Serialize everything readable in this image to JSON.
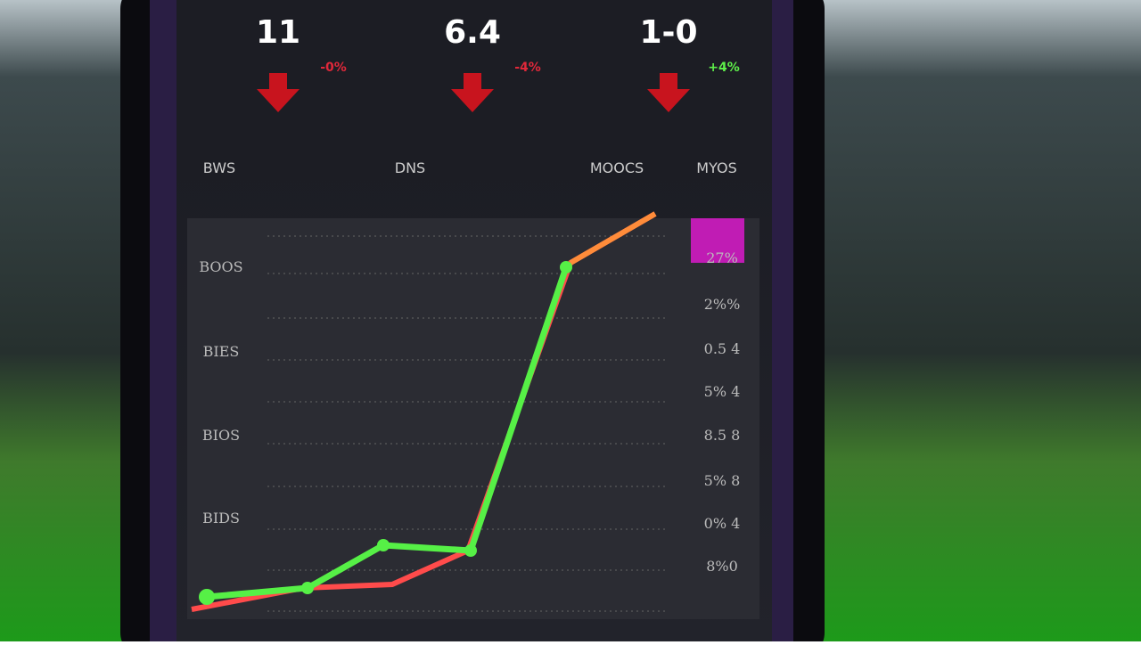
{
  "stats": [
    {
      "value": "11",
      "change": "-0%"
    },
    {
      "value": "6.4",
      "change": "-4%"
    },
    {
      "value": "1-0",
      "change": "+4%"
    }
  ],
  "columns": [
    "BWS",
    "DNS",
    "MOOCS",
    "MYOS"
  ],
  "chart": {
    "left_labels": [
      "BOOS",
      "BIES",
      "BIOS",
      "BIDS"
    ],
    "right_labels": [
      "27%",
      "2%%",
      "0.5 4",
      "5% 4",
      "8.5 8",
      "5% 8",
      "0% 4",
      "8%0"
    ]
  }
}
